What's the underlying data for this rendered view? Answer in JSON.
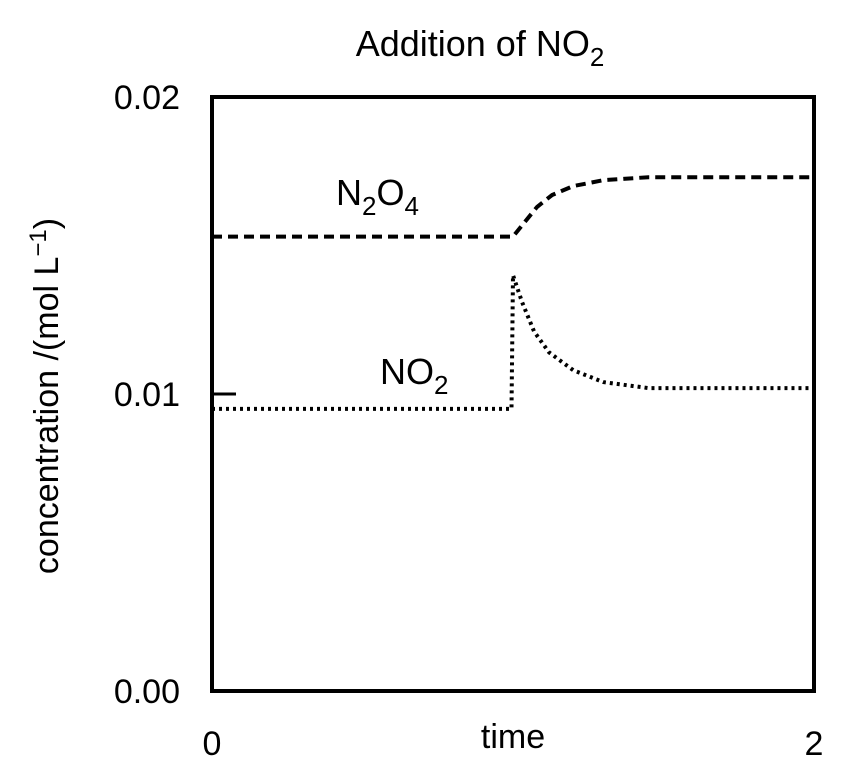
{
  "chart_data": {
    "type": "line",
    "title": "Addition of NO",
    "title_subscript": "2",
    "xlabel": "time",
    "ylabel": "concentration /(mol L",
    "ylabel_superscript": "−1",
    "ylabel_close": ")",
    "xlim": [
      0,
      2
    ],
    "ylim": [
      0,
      0.02
    ],
    "x_ticks": [
      {
        "value": 0,
        "label": "0"
      },
      {
        "value": 2,
        "label": "2"
      }
    ],
    "y_ticks": [
      {
        "value": 0.0,
        "label": "0.00"
      },
      {
        "value": 0.01,
        "label": "0.01"
      },
      {
        "value": 0.02,
        "label": "0.02"
      }
    ],
    "grid": false,
    "series": [
      {
        "name": "N2O4",
        "label_parts": [
          {
            "t": "N"
          },
          {
            "t": "2",
            "sub": true
          },
          {
            "t": "O"
          },
          {
            "t": "4",
            "sub": true
          }
        ],
        "style": "dashed",
        "color": "#000000",
        "points": [
          [
            0.0,
            0.0153
          ],
          [
            0.99,
            0.0153
          ],
          [
            1.0,
            0.0153
          ],
          [
            1.04,
            0.0158
          ],
          [
            1.08,
            0.0163
          ],
          [
            1.13,
            0.0167
          ],
          [
            1.2,
            0.017
          ],
          [
            1.3,
            0.0172
          ],
          [
            1.45,
            0.0173
          ],
          [
            1.7,
            0.0173
          ],
          [
            2.0,
            0.0173
          ]
        ]
      },
      {
        "name": "NO2",
        "label_parts": [
          {
            "t": "NO"
          },
          {
            "t": "2",
            "sub": true
          }
        ],
        "style": "dotted",
        "color": "#000000",
        "points": [
          [
            0.0,
            0.0095
          ],
          [
            0.99,
            0.0095
          ],
          [
            0.995,
            0.0095
          ],
          [
            1.0,
            0.014
          ],
          [
            1.03,
            0.0131
          ],
          [
            1.07,
            0.0121
          ],
          [
            1.12,
            0.0114
          ],
          [
            1.2,
            0.0108
          ],
          [
            1.3,
            0.0104
          ],
          [
            1.45,
            0.0102
          ],
          [
            1.7,
            0.0102
          ],
          [
            2.0,
            0.0102
          ]
        ]
      }
    ]
  }
}
